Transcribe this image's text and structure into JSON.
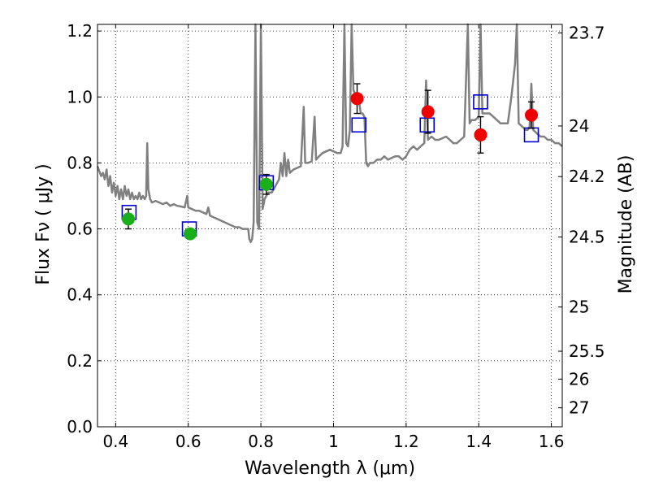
{
  "chart_data": {
    "type": "scatter",
    "title": "",
    "xlabel": "Wavelength  λ (μm)",
    "ylabel": "Flux  Fν  ( μJy )",
    "ylabel_right": "Magnitude (AB)",
    "xlim": [
      0.35,
      1.63
    ],
    "ylim": [
      0.0,
      1.22
    ],
    "grid": true,
    "x_ticks": [
      0.4,
      0.6,
      0.8,
      1.0,
      1.2,
      1.4,
      1.6
    ],
    "x_tick_labels": [
      "0.4",
      "0.6",
      "0.8",
      "1",
      "1.2",
      "1.4",
      "1.6"
    ],
    "y_ticks": [
      0.0,
      0.2,
      0.4,
      0.6,
      0.8,
      1.0,
      1.2
    ],
    "y_tick_labels": [
      "0.0",
      "0.2",
      "0.4",
      "0.6",
      "0.8",
      "1.0",
      "1.2"
    ],
    "right_ticks": [
      {
        "label": "23.7",
        "flux": 1.1939
      },
      {
        "label": "24",
        "flux": 0.912
      },
      {
        "label": "24.2",
        "flux": 0.7586
      },
      {
        "label": "24.5",
        "flux": 0.5754
      },
      {
        "label": "25",
        "flux": 0.3631
      },
      {
        "label": "25.5",
        "flux": 0.2291
      },
      {
        "label": "26",
        "flux": 0.1445
      },
      {
        "label": "27",
        "flux": 0.0575
      }
    ],
    "colors": {
      "model": "#808080",
      "green": "#1aaf1a",
      "red": "#ee0000",
      "square": "#0000cc",
      "errorbar": "#000000",
      "grid": "#000000"
    },
    "series": [
      {
        "kind": "line",
        "points": [
          [
            0.35,
            0.79
          ],
          [
            0.36,
            0.76
          ],
          [
            0.365,
            0.77
          ],
          [
            0.37,
            0.75
          ],
          [
            0.375,
            0.78
          ],
          [
            0.38,
            0.73
          ],
          [
            0.385,
            0.76
          ],
          [
            0.39,
            0.71
          ],
          [
            0.395,
            0.74
          ],
          [
            0.4,
            0.7
          ],
          [
            0.405,
            0.73
          ],
          [
            0.41,
            0.69
          ],
          [
            0.415,
            0.72
          ],
          [
            0.42,
            0.69
          ],
          [
            0.425,
            0.73
          ],
          [
            0.43,
            0.7
          ],
          [
            0.435,
            0.72
          ],
          [
            0.44,
            0.69
          ],
          [
            0.445,
            0.71
          ],
          [
            0.45,
            0.69
          ],
          [
            0.455,
            0.7
          ],
          [
            0.46,
            0.69
          ],
          [
            0.465,
            0.71
          ],
          [
            0.47,
            0.69
          ],
          [
            0.475,
            0.7
          ],
          [
            0.48,
            0.69
          ],
          [
            0.484,
            0.7
          ],
          [
            0.487,
            0.86
          ],
          [
            0.49,
            0.72
          ],
          [
            0.495,
            0.69
          ],
          [
            0.5,
            0.68
          ],
          [
            0.51,
            0.685
          ],
          [
            0.52,
            0.68
          ],
          [
            0.53,
            0.675
          ],
          [
            0.54,
            0.68
          ],
          [
            0.55,
            0.67
          ],
          [
            0.56,
            0.675
          ],
          [
            0.57,
            0.67
          ],
          [
            0.58,
            0.668
          ],
          [
            0.59,
            0.665
          ],
          [
            0.597,
            0.7
          ],
          [
            0.6,
            0.665
          ],
          [
            0.61,
            0.66
          ],
          [
            0.62,
            0.655
          ],
          [
            0.63,
            0.655
          ],
          [
            0.64,
            0.65
          ],
          [
            0.65,
            0.645
          ],
          [
            0.655,
            0.665
          ],
          [
            0.66,
            0.64
          ],
          [
            0.67,
            0.635
          ],
          [
            0.68,
            0.63
          ],
          [
            0.69,
            0.625
          ],
          [
            0.7,
            0.62
          ],
          [
            0.71,
            0.615
          ],
          [
            0.72,
            0.61
          ],
          [
            0.73,
            0.605
          ],
          [
            0.74,
            0.605
          ],
          [
            0.75,
            0.6
          ],
          [
            0.76,
            0.6
          ],
          [
            0.765,
            0.6
          ],
          [
            0.768,
            0.57
          ],
          [
            0.772,
            0.56
          ],
          [
            0.776,
            0.57
          ],
          [
            0.78,
            0.62
          ],
          [
            0.785,
            1.22
          ],
          [
            0.79,
            0.62
          ],
          [
            0.795,
            0.6
          ],
          [
            0.8,
            1.22
          ],
          [
            0.805,
            0.66
          ],
          [
            0.81,
            0.69
          ],
          [
            0.815,
            0.7
          ],
          [
            0.82,
            0.71
          ],
          [
            0.83,
            0.71
          ],
          [
            0.84,
            0.73
          ],
          [
            0.85,
            0.75
          ],
          [
            0.855,
            0.8
          ],
          [
            0.86,
            0.76
          ],
          [
            0.865,
            0.83
          ],
          [
            0.87,
            0.76
          ],
          [
            0.875,
            0.81
          ],
          [
            0.88,
            0.77
          ],
          [
            0.89,
            0.78
          ],
          [
            0.9,
            0.785
          ],
          [
            0.91,
            0.79
          ],
          [
            0.918,
            0.97
          ],
          [
            0.922,
            0.8
          ],
          [
            0.93,
            0.8
          ],
          [
            0.94,
            0.805
          ],
          [
            0.948,
            0.94
          ],
          [
            0.952,
            0.81
          ],
          [
            0.96,
            0.82
          ],
          [
            0.97,
            0.83
          ],
          [
            0.98,
            0.835
          ],
          [
            0.99,
            0.84
          ],
          [
            1.0,
            0.835
          ],
          [
            1.01,
            0.83
          ],
          [
            1.02,
            0.83
          ],
          [
            1.025,
            0.85
          ],
          [
            1.03,
            1.22
          ],
          [
            1.035,
            0.86
          ],
          [
            1.04,
            0.85
          ],
          [
            1.045,
            0.9
          ],
          [
            1.05,
            1.22
          ],
          [
            1.055,
            1.02
          ],
          [
            1.06,
            1.01
          ],
          [
            1.065,
            1.0
          ],
          [
            1.07,
            0.99
          ],
          [
            1.075,
            0.95
          ],
          [
            1.08,
            0.95
          ],
          [
            1.085,
            0.94
          ],
          [
            1.09,
            0.8
          ],
          [
            1.095,
            0.79
          ],
          [
            1.1,
            0.8
          ],
          [
            1.11,
            0.8
          ],
          [
            1.12,
            0.81
          ],
          [
            1.13,
            0.81
          ],
          [
            1.14,
            0.82
          ],
          [
            1.15,
            0.81
          ],
          [
            1.16,
            0.815
          ],
          [
            1.17,
            0.82
          ],
          [
            1.18,
            0.82
          ],
          [
            1.19,
            0.81
          ],
          [
            1.2,
            0.82
          ],
          [
            1.21,
            0.84
          ],
          [
            1.22,
            0.85
          ],
          [
            1.23,
            0.84
          ],
          [
            1.24,
            0.85
          ],
          [
            1.25,
            0.86
          ],
          [
            1.255,
            1.05
          ],
          [
            1.26,
            0.87
          ],
          [
            1.27,
            0.88
          ],
          [
            1.28,
            0.87
          ],
          [
            1.29,
            0.87
          ],
          [
            1.3,
            0.875
          ],
          [
            1.31,
            0.88
          ],
          [
            1.32,
            0.87
          ],
          [
            1.33,
            0.86
          ],
          [
            1.34,
            0.86
          ],
          [
            1.35,
            0.87
          ],
          [
            1.36,
            0.88
          ],
          [
            1.37,
            1.22
          ],
          [
            1.375,
            0.92
          ],
          [
            1.38,
            0.93
          ],
          [
            1.39,
            0.93
          ],
          [
            1.4,
            0.94
          ],
          [
            1.405,
            1.22
          ],
          [
            1.41,
            0.95
          ],
          [
            1.42,
            0.95
          ],
          [
            1.43,
            0.95
          ],
          [
            1.44,
            0.94
          ],
          [
            1.45,
            0.93
          ],
          [
            1.46,
            0.92
          ],
          [
            1.47,
            0.92
          ],
          [
            1.48,
            0.92
          ],
          [
            1.49,
            1.0
          ],
          [
            1.5,
            1.1
          ],
          [
            1.505,
            1.22
          ],
          [
            1.51,
            0.92
          ],
          [
            1.52,
            0.91
          ],
          [
            1.53,
            0.9
          ],
          [
            1.535,
            0.9
          ],
          [
            1.54,
            0.91
          ],
          [
            1.545,
            1.04
          ],
          [
            1.55,
            0.9
          ],
          [
            1.56,
            0.89
          ],
          [
            1.57,
            0.88
          ],
          [
            1.58,
            0.88
          ],
          [
            1.59,
            0.87
          ],
          [
            1.6,
            0.87
          ],
          [
            1.61,
            0.86
          ],
          [
            1.62,
            0.86
          ],
          [
            1.63,
            0.85
          ]
        ]
      },
      {
        "kind": "marker",
        "marker": "circle",
        "color": "green",
        "points": [
          {
            "x": 0.435,
            "y": 0.63,
            "err": 0.03
          },
          {
            "x": 0.605,
            "y": 0.585,
            "err": 0.015
          },
          {
            "x": 0.815,
            "y": 0.735,
            "err": 0.03
          }
        ]
      },
      {
        "kind": "marker",
        "marker": "circle",
        "color": "red",
        "points": [
          {
            "x": 1.065,
            "y": 0.995,
            "err": 0.045
          },
          {
            "x": 1.26,
            "y": 0.955,
            "err": 0.065
          },
          {
            "x": 1.405,
            "y": 0.885,
            "err": 0.055
          },
          {
            "x": 1.545,
            "y": 0.945,
            "err": 0.04
          }
        ]
      },
      {
        "kind": "marker",
        "marker": "square",
        "color": "square",
        "points": [
          {
            "x": 0.437,
            "y": 0.65
          },
          {
            "x": 0.603,
            "y": 0.6
          },
          {
            "x": 0.815,
            "y": 0.74
          },
          {
            "x": 1.07,
            "y": 0.915
          },
          {
            "x": 1.258,
            "y": 0.915
          },
          {
            "x": 1.405,
            "y": 0.985
          },
          {
            "x": 1.545,
            "y": 0.885
          }
        ]
      }
    ]
  }
}
